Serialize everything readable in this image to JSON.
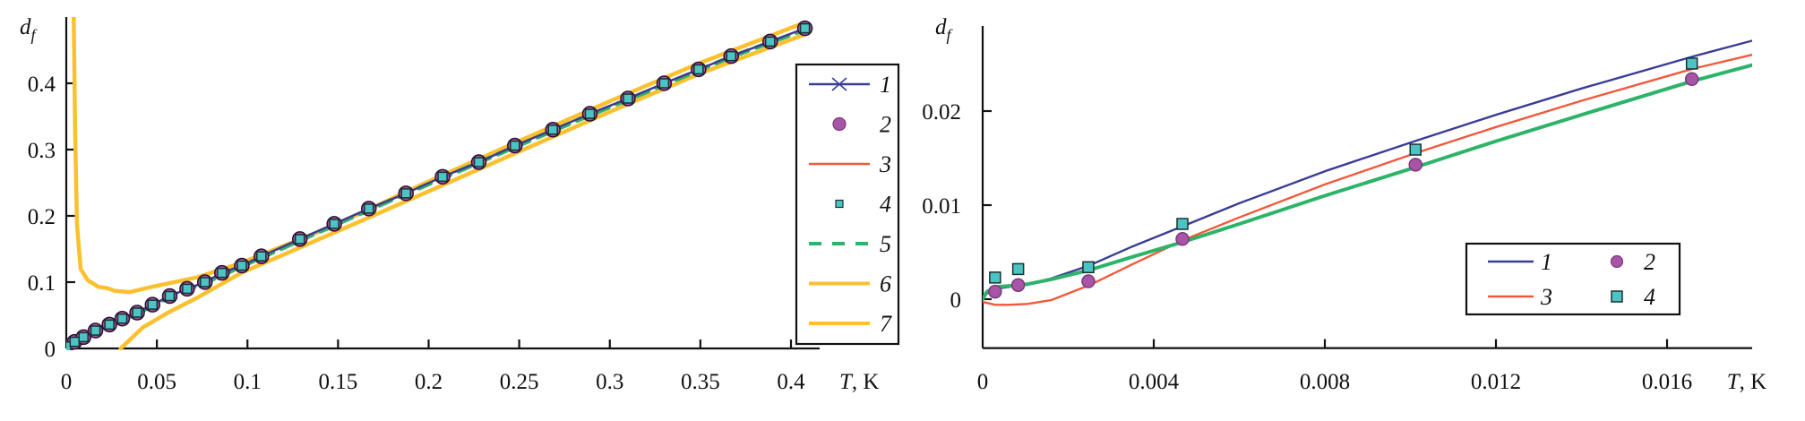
{
  "chart_data": [
    {
      "type": "line",
      "panel": "left",
      "title": "",
      "xlabel_italic": "T",
      "xlabel_unit": ", K",
      "ylabel": "d",
      "ylabel_sub": "f",
      "xlim": [
        0,
        0.41
      ],
      "ylim": [
        0,
        0.5
      ],
      "x_ticks": [
        0,
        0.05,
        0.1,
        0.15,
        0.2,
        0.25,
        0.3,
        0.35,
        0.4
      ],
      "x_tick_labels": [
        "0",
        "0.05",
        "0.1",
        "0.15",
        "0.2",
        "0.25",
        "0.3",
        "0.35",
        "0.4"
      ],
      "y_ticks": [
        0,
        0.1,
        0.2,
        0.3,
        0.4
      ],
      "y_tick_labels": [
        "0",
        "0.1",
        "0.2",
        "0.3",
        "0.4"
      ],
      "grid": false,
      "legend_position": "right",
      "series": [
        {
          "name": "1",
          "style": "line-x",
          "color": "#3a3d96",
          "x": [
            0,
            0.0046,
            0.0095,
            0.0161,
            0.0238,
            0.0309,
            0.0391,
            0.0476,
            0.0571,
            0.0667,
            0.0765,
            0.0859,
            0.0969,
            0.1077,
            0.1289,
            0.1479,
            0.167,
            0.1875,
            0.2077,
            0.2277,
            0.2476,
            0.2686,
            0.289,
            0.31,
            0.33,
            0.349,
            0.367,
            0.3885,
            0.4077
          ],
          "y": [
            0.003,
            0.01,
            0.017,
            0.027,
            0.036,
            0.045,
            0.054,
            0.066,
            0.079,
            0.09,
            0.1,
            0.114,
            0.125,
            0.139,
            0.165,
            0.188,
            0.211,
            0.234,
            0.259,
            0.281,
            0.306,
            0.33,
            0.354,
            0.377,
            0.4,
            0.421,
            0.441,
            0.463,
            0.483
          ]
        },
        {
          "name": "2",
          "style": "circle",
          "color": "#a855a8",
          "x": [
            0,
            0.0046,
            0.0095,
            0.0161,
            0.0238,
            0.0309,
            0.0391,
            0.0476,
            0.0571,
            0.0667,
            0.0765,
            0.0859,
            0.0969,
            0.1077,
            0.1289,
            0.1479,
            0.167,
            0.1875,
            0.2077,
            0.2277,
            0.2476,
            0.2686,
            0.289,
            0.31,
            0.33,
            0.349,
            0.367,
            0.3885,
            0.4077
          ],
          "y": [
            0.003,
            0.01,
            0.017,
            0.027,
            0.036,
            0.045,
            0.054,
            0.066,
            0.079,
            0.09,
            0.1,
            0.114,
            0.125,
            0.139,
            0.165,
            0.188,
            0.211,
            0.234,
            0.259,
            0.281,
            0.306,
            0.33,
            0.354,
            0.377,
            0.4,
            0.421,
            0.441,
            0.463,
            0.483
          ]
        },
        {
          "name": "3",
          "style": "line",
          "color": "#f05a3c",
          "x": [
            0,
            0.0046,
            0.0095,
            0.0161,
            0.0238,
            0.0309,
            0.0391,
            0.0476,
            0.0571,
            0.0667,
            0.0765,
            0.0859,
            0.0969,
            0.1077,
            0.1289,
            0.1479,
            0.167,
            0.1875,
            0.2077,
            0.2277,
            0.2476,
            0.2686,
            0.289,
            0.31,
            0.33,
            0.349,
            0.367,
            0.3885,
            0.4077
          ],
          "y": [
            0.003,
            0.01,
            0.017,
            0.027,
            0.036,
            0.045,
            0.054,
            0.066,
            0.079,
            0.09,
            0.1,
            0.114,
            0.125,
            0.139,
            0.165,
            0.188,
            0.211,
            0.234,
            0.259,
            0.281,
            0.306,
            0.33,
            0.354,
            0.377,
            0.4,
            0.421,
            0.441,
            0.463,
            0.483
          ]
        },
        {
          "name": "4",
          "style": "square",
          "color": "#4cc4c4",
          "x": [
            0,
            0.0046,
            0.0095,
            0.0161,
            0.0238,
            0.0309,
            0.0391,
            0.0476,
            0.0571,
            0.0667,
            0.0765,
            0.0859,
            0.0969,
            0.1077,
            0.1289,
            0.1479,
            0.167,
            0.1875,
            0.2077,
            0.2277,
            0.2476,
            0.2686,
            0.289,
            0.31,
            0.33,
            0.349,
            0.367,
            0.3885,
            0.4077
          ],
          "y": [
            0.003,
            0.01,
            0.017,
            0.027,
            0.036,
            0.045,
            0.054,
            0.066,
            0.079,
            0.09,
            0.1,
            0.114,
            0.125,
            0.139,
            0.165,
            0.188,
            0.211,
            0.234,
            0.259,
            0.281,
            0.306,
            0.33,
            0.354,
            0.377,
            0.4,
            0.421,
            0.441,
            0.463,
            0.483
          ]
        },
        {
          "name": "5",
          "style": "dashed",
          "color": "#2db36a",
          "x": [
            0,
            0.0095,
            0.0238,
            0.0391,
            0.0571,
            0.0765,
            0.0969,
            0.1289,
            0.167,
            0.2077,
            0.2476,
            0.289,
            0.33,
            0.367,
            0.4077
          ],
          "y": [
            0.002,
            0.016,
            0.035,
            0.053,
            0.078,
            0.099,
            0.124,
            0.163,
            0.209,
            0.257,
            0.304,
            0.352,
            0.398,
            0.44,
            0.481
          ]
        },
        {
          "name": "6",
          "style": "line",
          "color": "#fbc02d",
          "x": [
            0.0041,
            0.0049,
            0.0059,
            0.0079,
            0.0118,
            0.0177,
            0.0227,
            0.0266,
            0.035,
            0.0473,
            0.0719,
            0.0966,
            0.121,
            0.1458,
            0.2,
            0.25,
            0.3,
            0.35,
            0.408
          ],
          "y": [
            0.5,
            0.323,
            0.188,
            0.12,
            0.103,
            0.093,
            0.091,
            0.087,
            0.085,
            0.093,
            0.107,
            0.129,
            0.156,
            0.183,
            0.252,
            0.313,
            0.373,
            0.431,
            0.492
          ]
        },
        {
          "name": "7",
          "style": "line",
          "color": "#fbc02d",
          "x": [
            0.03,
            0.0424,
            0.0555,
            0.0719,
            0.0966,
            0.1212,
            0.159,
            0.2,
            0.25,
            0.3,
            0.35,
            0.408
          ],
          "y": [
            0.0,
            0.032,
            0.053,
            0.076,
            0.114,
            0.143,
            0.188,
            0.237,
            0.297,
            0.357,
            0.415,
            0.474
          ]
        }
      ]
    },
    {
      "type": "line",
      "panel": "right",
      "title": "",
      "xlabel_italic": "T",
      "xlabel_unit": ", K",
      "ylabel": "d",
      "ylabel_sub": "f",
      "xlim": [
        0,
        0.018
      ],
      "ylim": [
        -0.0052,
        0.029
      ],
      "x_ticks": [
        0,
        0.004,
        0.008,
        0.012,
        0.016
      ],
      "x_tick_labels": [
        "0",
        "0.004",
        "0.008",
        "0.012",
        "0.016"
      ],
      "y_ticks": [
        0,
        0.01,
        0.02
      ],
      "y_tick_labels": [
        "0",
        "0.01",
        "0.02"
      ],
      "grid": false,
      "legend_position": "bottom-right",
      "series": [
        {
          "name": "1",
          "style": "line",
          "color": "#3a3d96",
          "x": [
            0,
            0.0001,
            0.0003,
            0.0006,
            0.00105,
            0.0016,
            0.0025,
            0.0035,
            0.0047,
            0.006,
            0.008,
            0.0101,
            0.012,
            0.014,
            0.0166,
            0.018
          ],
          "y": [
            0.0,
            0.0006,
            0.0011,
            0.0013,
            0.0016,
            0.0022,
            0.0036,
            0.0056,
            0.0078,
            0.0102,
            0.0136,
            0.0168,
            0.0196,
            0.0224,
            0.0258,
            0.0275
          ]
        },
        {
          "name": "2",
          "style": "circle",
          "color": "#a855a8",
          "x": [
            0.00029,
            0.00083,
            0.00247,
            0.00467,
            0.01012,
            0.01658
          ],
          "y": [
            0.0008,
            0.0015,
            0.0019,
            0.0064,
            0.0143,
            0.0234
          ]
        },
        {
          "name": "3",
          "style": "line",
          "color": "#f05a3c",
          "x": [
            0,
            0.0003,
            0.0006,
            0.00105,
            0.0016,
            0.0025,
            0.0035,
            0.0047,
            0.006,
            0.008,
            0.0101,
            0.012,
            0.014,
            0.0166,
            0.018
          ],
          "y": [
            -0.0003,
            -0.0006,
            -0.0006,
            -0.0005,
            -0.0001,
            0.0015,
            0.0037,
            0.0063,
            0.0087,
            0.0122,
            0.0155,
            0.0183,
            0.0211,
            0.0245,
            0.026
          ]
        },
        {
          "name": "4",
          "style": "square",
          "color": "#4cc4c4",
          "x": [
            0.00029,
            0.00083,
            0.00247,
            0.00467,
            0.01012,
            0.01658
          ],
          "y": [
            0.0023,
            0.0032,
            0.0034,
            0.008,
            0.0159,
            0.02505
          ]
        },
        {
          "name": "5",
          "style": "line",
          "color": "#2db36a",
          "x": [
            0,
            0.0001,
            0.0003,
            0.0006,
            0.00105,
            0.0016,
            0.0025,
            0.0035,
            0.0047,
            0.006,
            0.008,
            0.0101,
            0.012,
            0.014,
            0.0166,
            0.018
          ],
          "y": [
            0.0,
            0.0008,
            0.0013,
            0.0014,
            0.0016,
            0.0021,
            0.0031,
            0.0045,
            0.0061,
            0.008,
            0.011,
            0.014,
            0.0168,
            0.0196,
            0.0232,
            0.0249
          ]
        }
      ],
      "legend_items": [
        "1",
        "2",
        "3",
        "4"
      ]
    }
  ]
}
